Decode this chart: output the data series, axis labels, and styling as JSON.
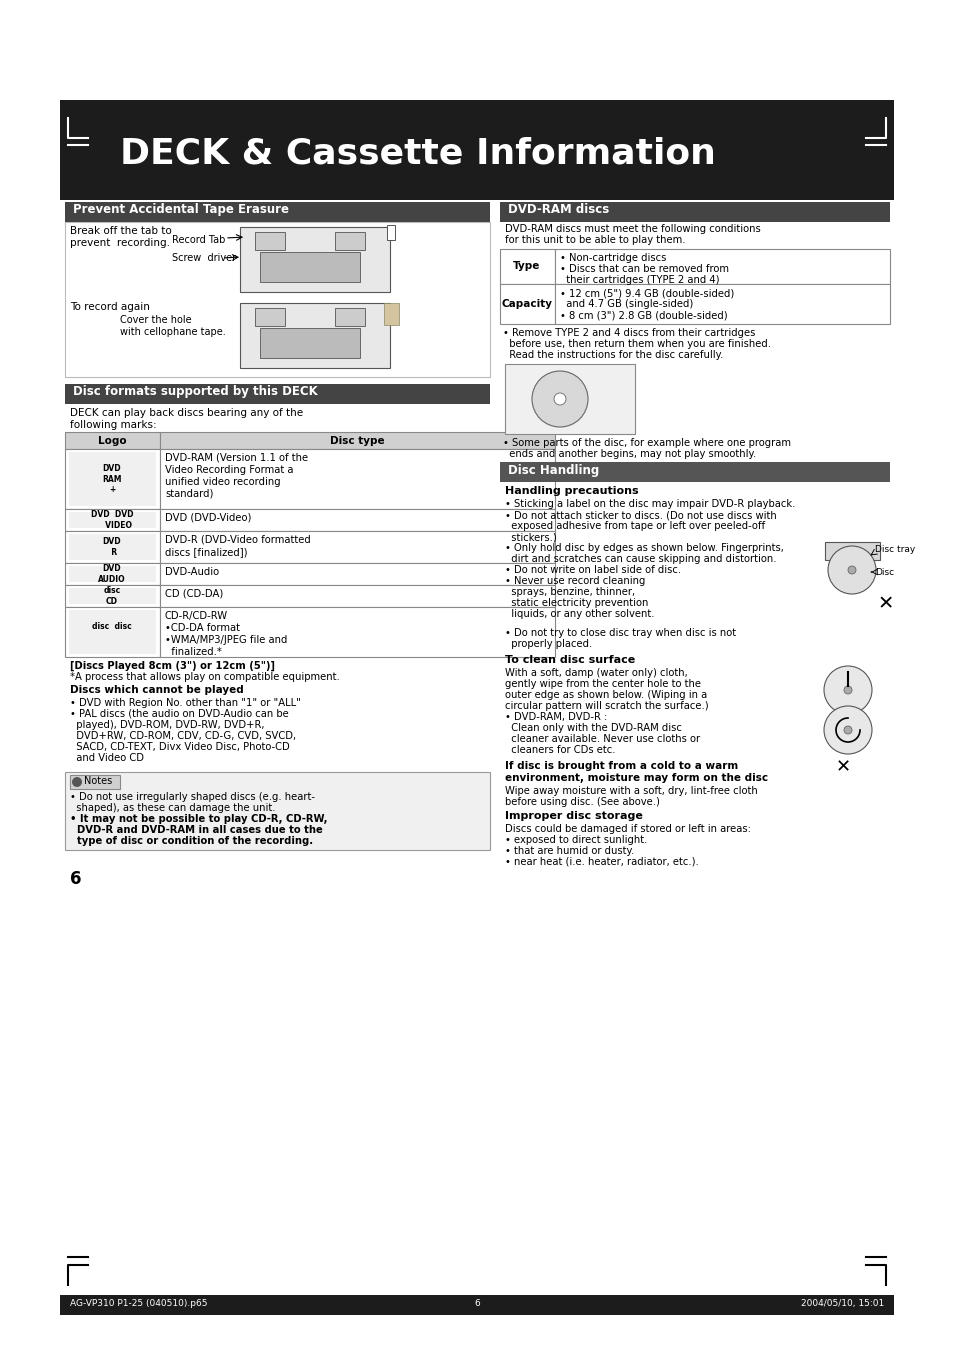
{
  "page_bg": "#ffffff",
  "header_bg": "#1c1c1c",
  "header_text": "DECK & Cassette Information",
  "section_dark_bg": "#444444",
  "section_text_color": "#ffffff",
  "disc_handling_bg": "#555555",
  "table_header_bg": "#d8d8d8",
  "table_border": "#999999",
  "notes_bg": "#e8e8e8",
  "footer_bg": "#1c1c1c",
  "prevent_title": "Prevent Accidental Tape Erasure",
  "dvdram_title": "DVD-RAM discs",
  "disc_formats_title": "Disc formats supported by this DECK",
  "disc_handling_title": "Disc Handling",
  "prevent_line1": "Break off the tab to",
  "prevent_line2": "prevent  recording.",
  "record_tab": "Record Tab",
  "screw_driver": "Screw  driver",
  "to_record_again": "To record again",
  "cover_hole": "Cover the hole",
  "cellophane": "with cellophane tape.",
  "dvdram_intro1": "DVD-RAM discs must meet the following conditions",
  "dvdram_intro2": "for this unit to be able to play them.",
  "type_label": "Type",
  "type_text1": "• Non-cartridge discs",
  "type_text2": "• Discs that can be removed from",
  "type_text3": "  their cartridges (TYPE 2 and 4)",
  "capacity_label": "Capacity",
  "cap_text1": "• 12 cm (5\") 9.4 GB (double-sided)",
  "cap_text2": "  and 4.7 GB (single-sided)",
  "cap_text3": "• 8 cm (3\") 2.8 GB (double-sided)",
  "dvdram_note1": "• Remove TYPE 2 and 4 discs from their cartridges",
  "dvdram_note2": "  before use, then return them when you are finished.",
  "dvdram_note3": "  Read the instructions for the disc carefully.",
  "some_parts": "• Some parts of the disc, for example where one program",
  "some_parts2": "  ends and another begins, may not play smoothly.",
  "disc_formats_intro1": "DECK can play back discs bearing any of the",
  "disc_formats_intro2": "following marks:",
  "logo_header": "Logo",
  "disctype_header": "Disc type",
  "row1_type": "DVD-RAM (Version 1.1 of the\nVideo Recording Format a\nunified video recording\nstandard)",
  "row2_type": "DVD (DVD-Video)",
  "row3_type": "DVD-R (DVD-Video formatted\ndiscs [finalized])",
  "row4_type": "DVD-Audio",
  "row5_type": "CD (CD-DA)",
  "row6_type": "CD-R/CD-RW\n•CD-DA format\n•WMA/MP3/JPEG file and\n  finalized.*",
  "note_8cm": "[Discs Played 8cm (3\") or 12cm (5\")]",
  "note_8cm2": "*A process that allows play on compatible equipment.",
  "cannot_play_title": "Discs which cannot be played",
  "cannot_play1": "• DVD with Region No. other than \"1\" or \"ALL\"",
  "cannot_play2": "• PAL discs (the audio on DVD-Audio can be",
  "cannot_play3": "  played), DVD-ROM, DVD-RW, DVD+R,",
  "cannot_play4": "  DVD+RW, CD-ROM, CDV, CD-G, CVD, SVCD,",
  "cannot_play5": "  SACD, CD-TEXT, Divx Video Disc, Photo-CD",
  "cannot_play6": "  and Video CD",
  "notes_badge": "Notes",
  "notes1": "• Do not use irregularly shaped discs (e.g. heart-",
  "notes2": "  shaped), as these can damage the unit.",
  "notes3": "• It may not be possible to play CD-R, CD-RW,",
  "notes4": "  DVD-R and DVD-RAM in all cases due to the",
  "notes5": "  type of disc or condition of the recording.",
  "handling_prec_title": "Handling precautions",
  "hp1": "• Sticking a label on the disc may impair DVD-R playback.",
  "hp2": "• Do not attach sticker to discs. (Do not use discs with",
  "hp3": "  exposed adhesive from tape or left over peeled-off",
  "hp4": "  stickers.)",
  "hp5": "• Only hold disc by edges as shown below. Fingerprints,",
  "hp6": "  dirt and scratches can cause skipping and distortion.",
  "hp7": "• Do not write on label side of disc.",
  "hp8": "• Never use record cleaning",
  "hp9": "  sprays, benzine, thinner,",
  "hp10": "  static electricity prevention",
  "hp11": "  liquids, or any other solvent.",
  "disc_tray_lbl": "Disc tray",
  "disc_lbl": "Disc",
  "no_close1": "• Do not try to close disc tray when disc is not",
  "no_close2": "  properly placed.",
  "clean_title": "To clean disc surface",
  "clean1": "With a soft, damp (water only) cloth,",
  "clean2": "gently wipe from the center hole to the",
  "clean3": "outer edge as shown below. (Wiping in a",
  "clean4": "circular pattern will scratch the surface.)",
  "clean5": "• DVD-RAM, DVD-R :",
  "clean6": "  Clean only with the DVD-RAM disc",
  "clean7": "  cleaner available. Never use cloths or",
  "clean8": "  cleaners for CDs etc.",
  "warm_title": "If disc is brought from a cold to a warm",
  "warm_title2": "environment, moisture may form on the disc",
  "warm1": "Wipe away moisture with a soft, dry, lint-free cloth",
  "warm2": "before using disc. (See above.)",
  "improper_title": "Improper disc storage",
  "imp1": "Discs could be damaged if stored or left in areas:",
  "imp2": "• exposed to direct sunlight.",
  "imp3": "• that are humid or dusty.",
  "imp4": "• near heat (i.e. heater, radiator, etc.).",
  "page_num": "6",
  "footer_left": "AG-VP310 P1-25 (040510).p65",
  "footer_mid": "6",
  "footer_right": "2004/05/10, 15:01"
}
